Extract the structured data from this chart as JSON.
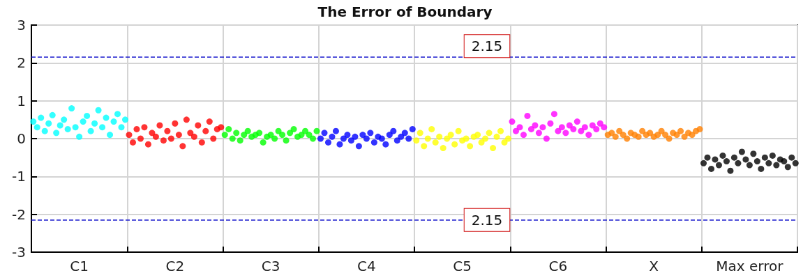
{
  "chart_data": {
    "type": "scatter",
    "title": "The Error of Boundary",
    "categories": [
      null,
      null,
      null,
      null,
      null,
      null,
      null,
      null,
      null,
      null,
      null,
      null,
      "C1",
      null,
      null,
      null,
      null,
      null,
      null,
      null,
      null,
      null,
      null,
      null,
      null,
      null,
      null,
      null,
      null,
      null,
      null,
      null,
      null,
      null,
      null,
      null,
      null,
      "C2",
      null,
      null,
      null,
      null,
      null,
      null,
      null,
      null,
      null,
      null,
      null,
      null,
      null,
      null,
      null,
      null,
      null,
      null,
      null,
      null,
      null,
      null,
      null,
      null,
      "C3",
      null,
      null,
      null,
      null,
      null,
      null,
      null,
      null,
      null,
      null,
      null,
      null,
      null,
      null,
      null,
      null,
      null,
      null,
      null,
      null,
      null,
      null,
      null,
      null,
      "C4",
      null,
      null,
      null,
      null,
      null,
      null,
      null,
      null,
      null,
      null,
      null,
      null,
      null,
      null,
      null,
      null,
      null,
      null,
      null,
      null,
      null,
      null,
      null,
      null,
      "C5",
      null,
      null,
      null,
      null,
      null,
      null,
      null,
      null,
      null,
      null,
      null,
      null,
      null,
      null,
      null,
      null,
      null,
      null,
      null,
      null,
      null,
      null,
      null,
      null,
      "C6",
      null,
      null,
      null,
      null,
      null,
      null,
      null,
      null,
      null,
      null,
      null,
      null,
      null,
      null,
      null,
      null,
      null,
      null,
      null,
      null,
      null,
      null,
      null,
      null,
      "X",
      null,
      null,
      null,
      null,
      null,
      null,
      null,
      null,
      null,
      null,
      null,
      null,
      null,
      null,
      null,
      null,
      null,
      null,
      null,
      null,
      null,
      null,
      null,
      null,
      "Max error",
      null,
      null,
      null,
      null,
      null,
      null,
      null,
      null,
      null,
      null,
      null,
      null
    ],
    "ylim": [
      -3,
      3
    ],
    "yticks": [
      -3,
      -2,
      -1,
      0,
      1,
      2,
      3
    ],
    "grid": true,
    "marker": "circle",
    "ref_lines": [
      {
        "axis": "y",
        "value": 2.15,
        "label": "2.15",
        "color": "#1a1acd",
        "line_style": "dashed"
      },
      {
        "axis": "y",
        "value": -2.15,
        "color": "#1a1acd",
        "line_style": "dashed"
      }
    ],
    "annotations": [
      "2.15"
    ],
    "values": [
      0.45,
      0.3,
      0.55,
      0.2,
      0.4,
      0.62,
      0.15,
      0.35,
      0.5,
      0.25,
      0.8,
      0.3,
      0.05,
      0.45,
      0.6,
      0.2,
      0.4,
      0.75,
      0.3,
      0.55,
      0.1,
      0.45,
      0.65,
      0.3,
      0.5,
      0.1,
      -0.1,
      0.25,
      0.0,
      0.3,
      -0.15,
      0.15,
      0.05,
      0.35,
      -0.05,
      0.2,
      0.0,
      0.4,
      0.1,
      -0.2,
      0.5,
      0.15,
      0.05,
      0.35,
      -0.1,
      0.2,
      0.45,
      0.0,
      0.25,
      0.3,
      0.1,
      0.25,
      0.0,
      0.15,
      -0.05,
      0.1,
      0.2,
      0.05,
      0.1,
      0.15,
      -0.1,
      0.05,
      0.1,
      0.0,
      0.2,
      0.1,
      -0.05,
      0.15,
      0.25,
      0.05,
      0.1,
      0.2,
      0.1,
      0.0,
      0.2,
      0.0,
      0.15,
      -0.1,
      0.05,
      0.2,
      -0.15,
      0.0,
      0.1,
      -0.05,
      0.05,
      -0.2,
      0.1,
      0.0,
      0.15,
      -0.1,
      0.05,
      0.0,
      -0.15,
      0.1,
      0.2,
      -0.05,
      0.05,
      0.15,
      0.0,
      0.25,
      -0.05,
      0.15,
      -0.2,
      0.0,
      0.25,
      -0.1,
      0.05,
      -0.25,
      0.0,
      0.1,
      -0.15,
      0.2,
      -0.05,
      0.0,
      -0.2,
      0.05,
      0.1,
      -0.1,
      0.0,
      0.15,
      -0.25,
      0.05,
      0.2,
      -0.1,
      0.0,
      0.45,
      0.2,
      0.3,
      0.1,
      0.6,
      0.25,
      0.35,
      0.15,
      0.3,
      0.0,
      0.4,
      0.65,
      0.2,
      0.3,
      0.15,
      0.35,
      0.25,
      0.45,
      0.2,
      0.3,
      0.1,
      0.35,
      0.25,
      0.4,
      0.3,
      0.1,
      0.15,
      0.05,
      0.2,
      0.1,
      0.0,
      0.15,
      0.1,
      0.05,
      0.2,
      0.1,
      0.15,
      0.05,
      0.1,
      0.2,
      0.1,
      0.0,
      0.15,
      0.1,
      0.2,
      0.05,
      0.15,
      0.1,
      0.2,
      0.25,
      -0.65,
      -0.5,
      -0.8,
      -0.55,
      -0.7,
      -0.45,
      -0.6,
      -0.85,
      -0.5,
      -0.65,
      -0.35,
      -0.55,
      -0.7,
      -0.4,
      -0.6,
      -0.8,
      -0.5,
      -0.65,
      -0.45,
      -0.7,
      -0.55,
      -0.6,
      -0.75,
      -0.5,
      -0.65
    ],
    "colors": [
      "#00ffff",
      "#00ffff",
      "#00ffff",
      "#00ffff",
      "#00ffff",
      "#00ffff",
      "#00ffff",
      "#00ffff",
      "#00ffff",
      "#00ffff",
      "#00ffff",
      "#00ffff",
      "#00ffff",
      "#00ffff",
      "#00ffff",
      "#00ffff",
      "#00ffff",
      "#00ffff",
      "#00ffff",
      "#00ffff",
      "#00ffff",
      "#00ffff",
      "#00ffff",
      "#00ffff",
      "#00ffff",
      "#ff0000",
      "#ff0000",
      "#ff0000",
      "#ff0000",
      "#ff0000",
      "#ff0000",
      "#ff0000",
      "#ff0000",
      "#ff0000",
      "#ff0000",
      "#ff0000",
      "#ff0000",
      "#ff0000",
      "#ff0000",
      "#ff0000",
      "#ff0000",
      "#ff0000",
      "#ff0000",
      "#ff0000",
      "#ff0000",
      "#ff0000",
      "#ff0000",
      "#ff0000",
      "#ff0000",
      "#ff0000",
      "#00ff00",
      "#00ff00",
      "#00ff00",
      "#00ff00",
      "#00ff00",
      "#00ff00",
      "#00ff00",
      "#00ff00",
      "#00ff00",
      "#00ff00",
      "#00ff00",
      "#00ff00",
      "#00ff00",
      "#00ff00",
      "#00ff00",
      "#00ff00",
      "#00ff00",
      "#00ff00",
      "#00ff00",
      "#00ff00",
      "#00ff00",
      "#00ff00",
      "#00ff00",
      "#00ff00",
      "#00ff00",
      "#0000ff",
      "#0000ff",
      "#0000ff",
      "#0000ff",
      "#0000ff",
      "#0000ff",
      "#0000ff",
      "#0000ff",
      "#0000ff",
      "#0000ff",
      "#0000ff",
      "#0000ff",
      "#0000ff",
      "#0000ff",
      "#0000ff",
      "#0000ff",
      "#0000ff",
      "#0000ff",
      "#0000ff",
      "#0000ff",
      "#0000ff",
      "#0000ff",
      "#0000ff",
      "#0000ff",
      "#0000ff",
      "#ffff00",
      "#ffff00",
      "#ffff00",
      "#ffff00",
      "#ffff00",
      "#ffff00",
      "#ffff00",
      "#ffff00",
      "#ffff00",
      "#ffff00",
      "#ffff00",
      "#ffff00",
      "#ffff00",
      "#ffff00",
      "#ffff00",
      "#ffff00",
      "#ffff00",
      "#ffff00",
      "#ffff00",
      "#ffff00",
      "#ffff00",
      "#ffff00",
      "#ffff00",
      "#ffff00",
      "#ffff00",
      "#ff00ff",
      "#ff00ff",
      "#ff00ff",
      "#ff00ff",
      "#ff00ff",
      "#ff00ff",
      "#ff00ff",
      "#ff00ff",
      "#ff00ff",
      "#ff00ff",
      "#ff00ff",
      "#ff00ff",
      "#ff00ff",
      "#ff00ff",
      "#ff00ff",
      "#ff00ff",
      "#ff00ff",
      "#ff00ff",
      "#ff00ff",
      "#ff00ff",
      "#ff00ff",
      "#ff00ff",
      "#ff00ff",
      "#ff00ff",
      "#ff00ff",
      "#ff8000",
      "#ff8000",
      "#ff8000",
      "#ff8000",
      "#ff8000",
      "#ff8000",
      "#ff8000",
      "#ff8000",
      "#ff8000",
      "#ff8000",
      "#ff8000",
      "#ff8000",
      "#ff8000",
      "#ff8000",
      "#ff8000",
      "#ff8000",
      "#ff8000",
      "#ff8000",
      "#ff8000",
      "#ff8000",
      "#ff8000",
      "#ff8000",
      "#ff8000",
      "#ff8000",
      "#ff8000",
      "#000000",
      "#000000",
      "#000000",
      "#000000",
      "#000000",
      "#000000",
      "#000000",
      "#000000",
      "#000000",
      "#000000",
      "#000000",
      "#000000",
      "#000000",
      "#000000",
      "#000000",
      "#000000",
      "#000000",
      "#000000",
      "#000000",
      "#000000",
      "#000000",
      "#000000",
      "#000000",
      "#000000",
      "#000000"
    ]
  }
}
